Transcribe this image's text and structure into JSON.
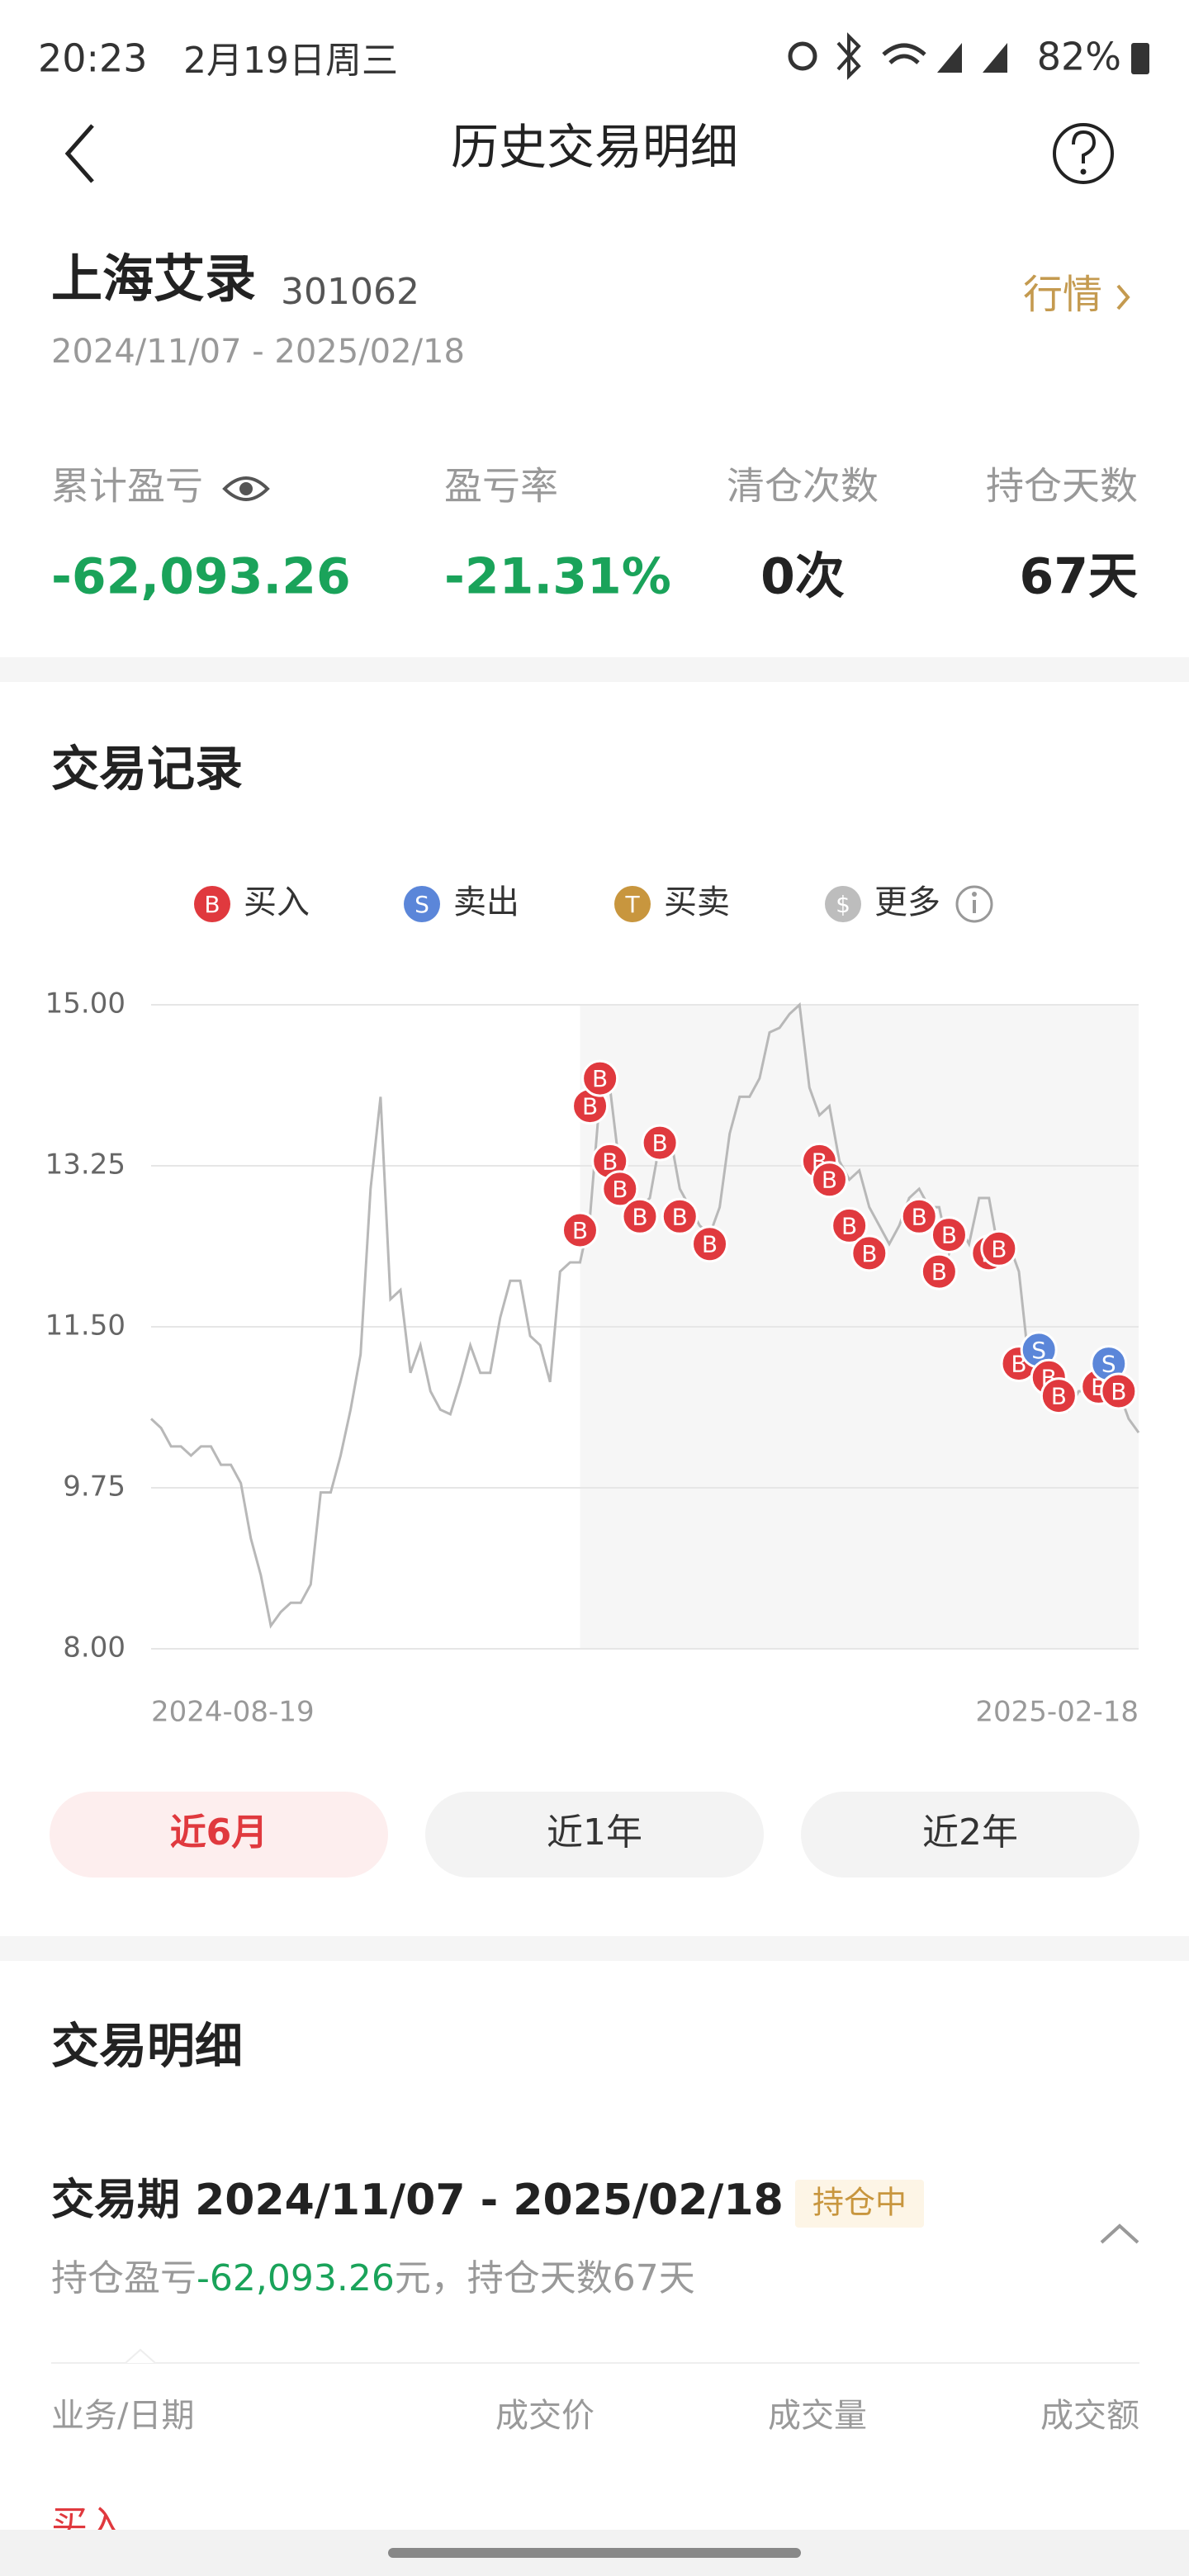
{
  "status_bar": {
    "time": "20:23",
    "date": "2月19日周三",
    "battery": "82%"
  },
  "header": {
    "title": "历史交易明细"
  },
  "stock": {
    "name": "上海艾录",
    "code": "301062",
    "quote_link": "行情",
    "period": "2024/11/07 - 2025/02/18"
  },
  "stats": [
    {
      "label": "累计盈亏",
      "value": "-62,093.26",
      "color": "#1aa35a"
    },
    {
      "label": "盈亏率",
      "value": "-21.31%",
      "color": "#1aa35a"
    },
    {
      "label": "清仓次数",
      "value": "0次",
      "color": "#222222"
    },
    {
      "label": "持仓天数",
      "value": "67天",
      "color": "#222222"
    }
  ],
  "trade_records": {
    "title": "交易记录",
    "legend": [
      {
        "icon": "B",
        "label": "买入",
        "color": "#e0393e"
      },
      {
        "icon": "S",
        "label": "卖出",
        "color": "#5b86d9"
      },
      {
        "icon": "T",
        "label": "买卖",
        "color": "#c8963e"
      },
      {
        "icon": "$",
        "label": "更多",
        "color": "#bdbdbd"
      }
    ],
    "chart_data": {
      "type": "line",
      "color": "#b8b8b8",
      "shade_color": "#f6f6f6",
      "grid": true,
      "ylim": [
        8,
        15
      ],
      "yticks": [
        {
          "value": 15,
          "label": "15.00"
        },
        {
          "value": 13.25,
          "label": "13.25"
        },
        {
          "value": 11.5,
          "label": "11.50"
        },
        {
          "value": 9.75,
          "label": "9.75"
        },
        {
          "value": 8,
          "label": "8.00"
        }
      ],
      "categories": [
        "2024-08-19",
        null,
        null,
        null,
        null,
        null,
        null,
        null,
        null,
        null,
        null,
        null,
        null,
        null,
        null,
        null,
        null,
        null,
        null,
        null,
        null,
        null,
        null,
        null,
        null,
        null,
        null,
        null,
        null,
        null,
        null,
        null,
        null,
        null,
        null,
        null,
        null,
        null,
        null,
        null,
        null,
        null,
        null,
        null,
        null,
        null,
        null,
        null,
        null,
        null,
        null,
        null,
        null,
        null,
        null,
        null,
        null,
        null,
        null,
        null,
        null,
        null,
        null,
        null,
        null,
        null,
        null,
        null,
        null,
        null,
        null,
        null,
        null,
        null,
        null,
        null,
        null,
        null,
        null,
        null,
        null,
        null,
        null,
        null,
        null,
        null,
        null,
        null,
        null,
        null,
        null,
        null,
        null,
        null,
        null,
        null,
        null,
        null,
        null,
        "2025-02-18"
      ],
      "values": [
        10.5,
        10.4,
        10.2,
        10.2,
        10.1,
        10.2,
        10.2,
        10.0,
        10.0,
        9.8,
        9.2,
        8.8,
        8.25,
        8.4,
        8.5,
        8.5,
        8.7,
        9.7,
        9.7,
        10.1,
        10.6,
        11.2,
        13.0,
        14.0,
        11.8,
        11.9,
        11.0,
        11.3,
        10.8,
        10.6,
        10.55,
        10.9,
        11.3,
        11.0,
        11.0,
        11.6,
        12.0,
        12.0,
        11.4,
        11.3,
        10.9,
        12.1,
        12.2,
        12.2,
        12.7,
        14.0,
        14.1,
        13.2,
        13.0,
        12.8,
        12.9,
        13.5,
        13.6,
        13.0,
        12.8,
        12.6,
        12.5,
        12.8,
        13.6,
        14.0,
        14.0,
        14.2,
        14.7,
        14.75,
        14.9,
        15.0,
        14.1,
        13.8,
        13.9,
        13.3,
        13.1,
        13.2,
        12.8,
        12.6,
        12.4,
        12.6,
        12.9,
        13.0,
        12.8,
        12.8,
        12.3,
        12.6,
        12.4,
        12.9,
        12.9,
        12.3,
        12.4,
        12.1,
        11.1,
        11.0,
        10.8,
        10.8,
        10.6,
        10.8,
        10.8,
        10.7,
        11.0,
        10.8,
        10.5,
        10.35
      ],
      "trades": [
        {
          "side": "B",
          "x": 43,
          "price": 12.55
        },
        {
          "side": "B",
          "x": 44,
          "price": 13.9
        },
        {
          "side": "B",
          "x": 45,
          "price": 14.2
        },
        {
          "side": "B",
          "x": 46,
          "price": 13.3
        },
        {
          "side": "B",
          "x": 47,
          "price": 13.0
        },
        {
          "side": "B",
          "x": 49,
          "price": 12.7
        },
        {
          "side": "B",
          "x": 51,
          "price": 13.5
        },
        {
          "side": "B",
          "x": 53,
          "price": 12.7
        },
        {
          "side": "B",
          "x": 56,
          "price": 12.4
        },
        {
          "side": "B",
          "x": 67,
          "price": 13.3
        },
        {
          "side": "B",
          "x": 68,
          "price": 13.1
        },
        {
          "side": "B",
          "x": 70,
          "price": 12.6
        },
        {
          "side": "B",
          "x": 72,
          "price": 12.3
        },
        {
          "side": "B",
          "x": 77,
          "price": 12.7
        },
        {
          "side": "B",
          "x": 79,
          "price": 12.1
        },
        {
          "side": "B",
          "x": 80,
          "price": 12.5
        },
        {
          "side": "B",
          "x": 84,
          "price": 12.3
        },
        {
          "side": "B",
          "x": 85,
          "price": 12.35
        },
        {
          "side": "B",
          "x": 87,
          "price": 11.1
        },
        {
          "side": "S",
          "x": 89,
          "price": 11.25
        },
        {
          "side": "B",
          "x": 90,
          "price": 10.95
        },
        {
          "side": "B",
          "x": 91,
          "price": 10.75
        },
        {
          "side": "B",
          "x": 95,
          "price": 10.85
        },
        {
          "side": "S",
          "x": 96,
          "price": 11.1
        },
        {
          "side": "B",
          "x": 97,
          "price": 10.8
        }
      ]
    },
    "ranges": [
      "近6月",
      "近1年",
      "近2年"
    ],
    "active_range": 0
  },
  "trade_details": {
    "title": "交易明细",
    "period_title": "交易期 2024/11/07 - 2025/02/18",
    "status": "持仓中",
    "summary_prefix": "持仓盈亏",
    "summary_value": "-62,093.26",
    "summary_suffix": "元，持仓天数67天",
    "columns": [
      "业务/日期",
      "成交价",
      "成交量",
      "成交额"
    ],
    "first_row": "买入"
  }
}
